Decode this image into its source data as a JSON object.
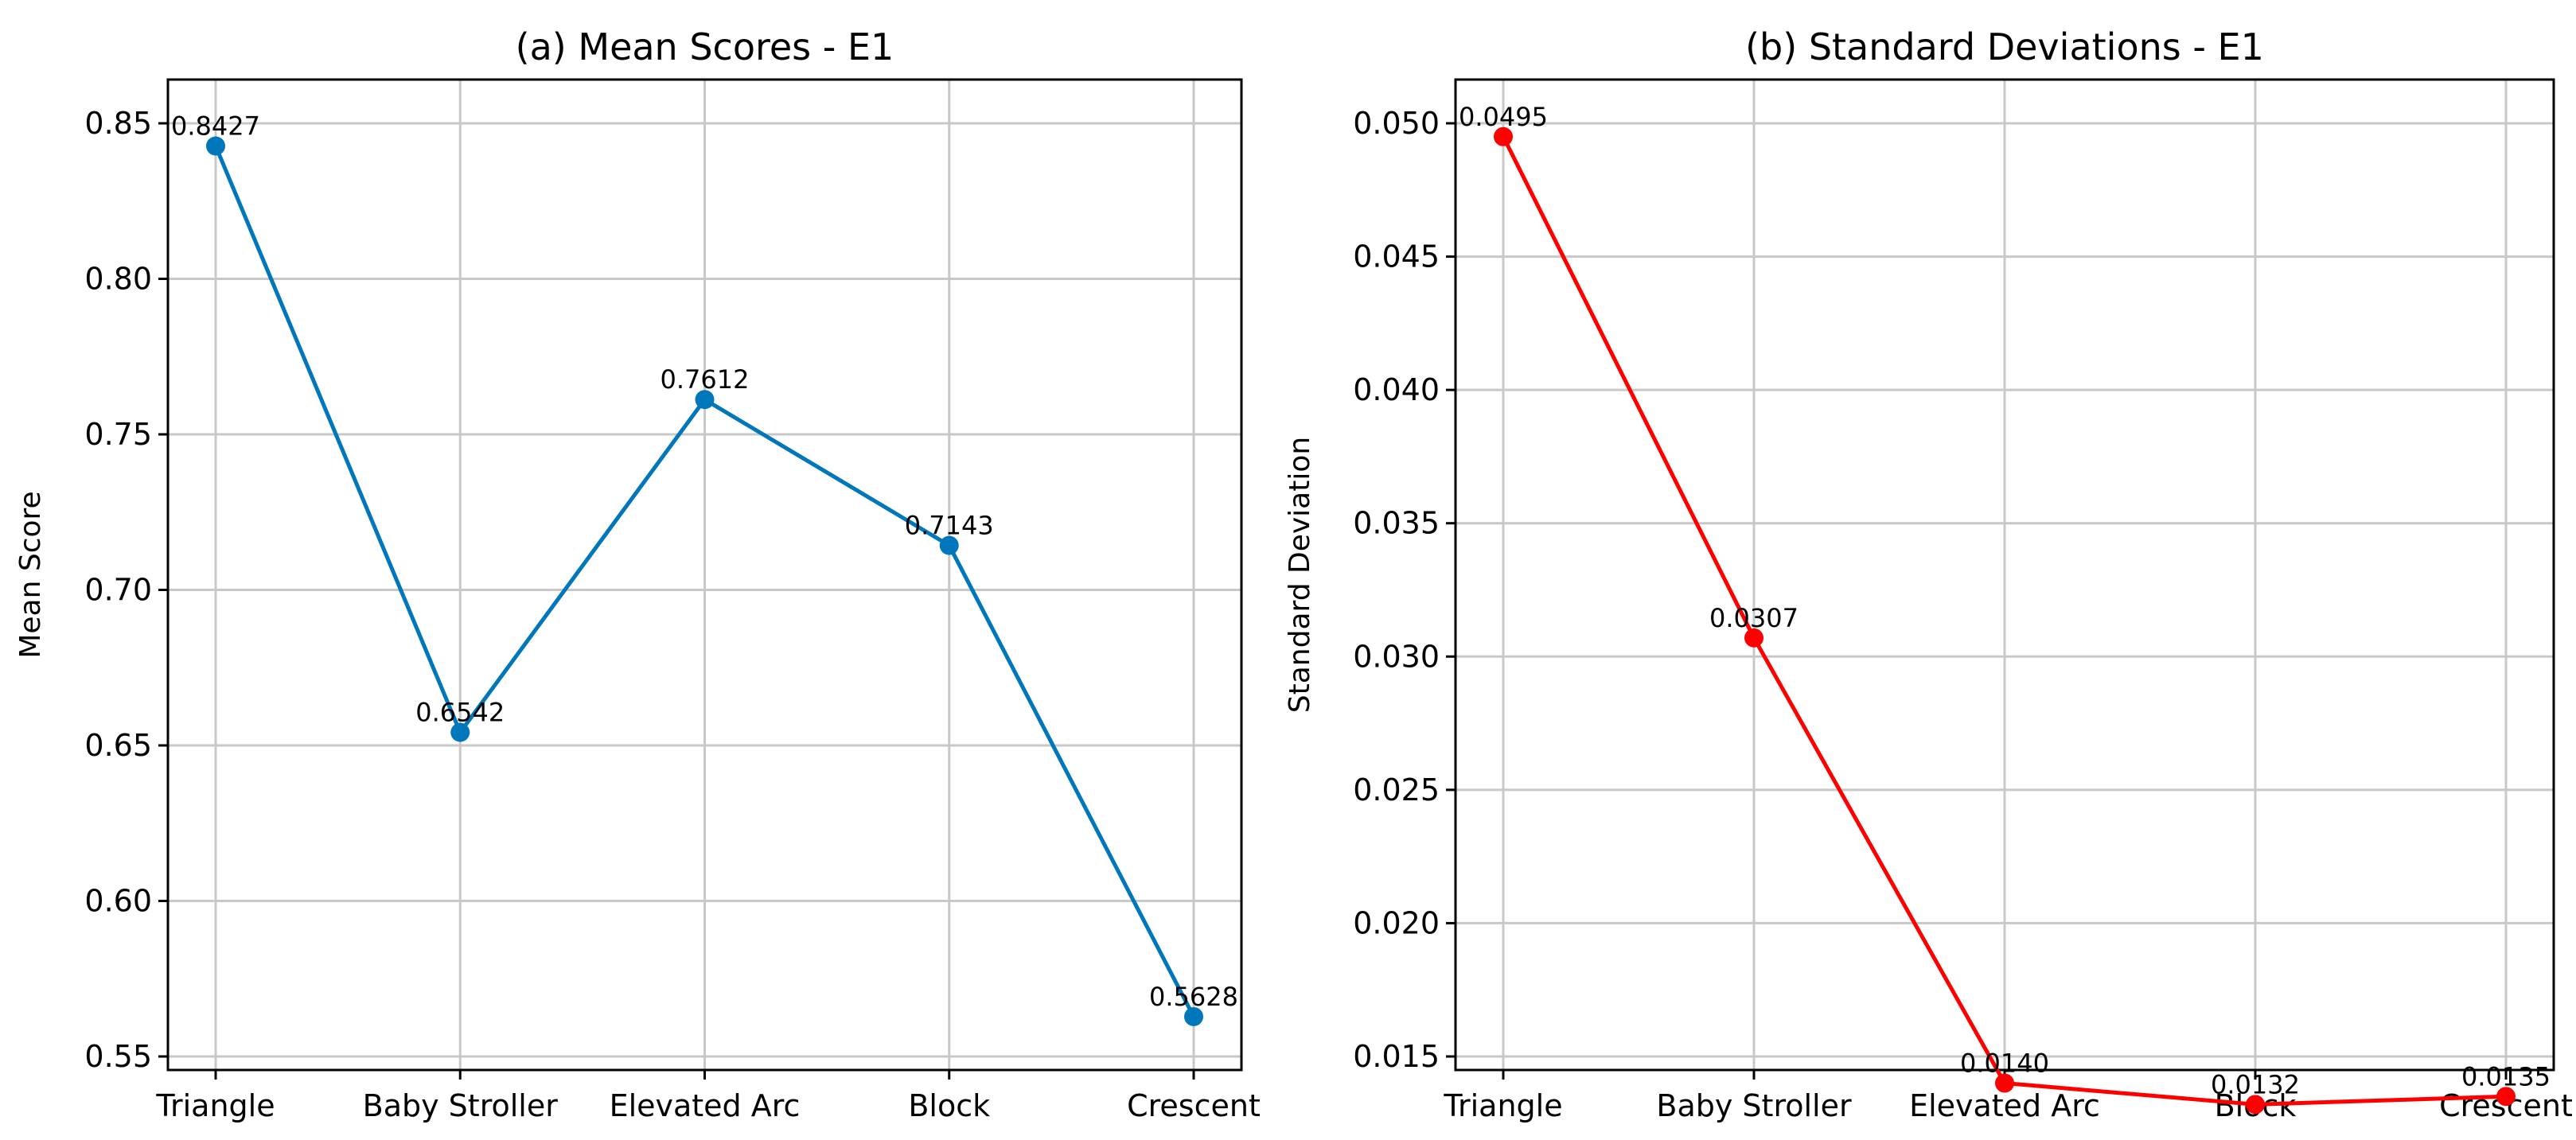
{
  "chart_data": [
    {
      "type": "line",
      "title": "(a) Mean Scores - E1",
      "xlabel": "",
      "ylabel": "Mean Score",
      "categories": [
        "Triangle",
        "Baby Stroller",
        "Elevated Arc",
        "Block",
        "Crescent"
      ],
      "series": [
        {
          "name": "Mean Score",
          "values": [
            0.8427,
            0.6542,
            0.7612,
            0.7143,
            0.5628
          ],
          "color": "#0077bb"
        }
      ],
      "data_labels": [
        "0.8427",
        "0.6542",
        "0.7612",
        "0.7143",
        "0.5628"
      ],
      "ylim": [
        0.55,
        0.85
      ],
      "yticks": [
        0.55,
        0.6,
        0.65,
        0.7,
        0.75,
        0.8,
        0.85
      ],
      "ytick_labels": [
        "0.55",
        "0.60",
        "0.65",
        "0.70",
        "0.75",
        "0.80",
        "0.85"
      ],
      "grid": true
    },
    {
      "type": "line",
      "title": "(b) Standard Deviations - E1",
      "xlabel": "",
      "ylabel": "Standard Deviation",
      "categories": [
        "Triangle",
        "Baby Stroller",
        "Elevated Arc",
        "Block",
        "Crescent"
      ],
      "series": [
        {
          "name": "Standard Deviation",
          "values": [
            0.0495,
            0.0307,
            0.014,
            0.0132,
            0.0135
          ],
          "color": "#ff0000"
        }
      ],
      "data_labels": [
        "0.0495",
        "0.0307",
        "0.0140",
        "0.0132",
        "0.0135"
      ],
      "ylim": [
        0.015,
        0.05
      ],
      "yticks": [
        0.015,
        0.02,
        0.025,
        0.03,
        0.035,
        0.04,
        0.045,
        0.05
      ],
      "ytick_labels": [
        "0.015",
        "0.020",
        "0.025",
        "0.030",
        "0.035",
        "0.040",
        "0.045",
        "0.050"
      ],
      "grid": true
    }
  ]
}
